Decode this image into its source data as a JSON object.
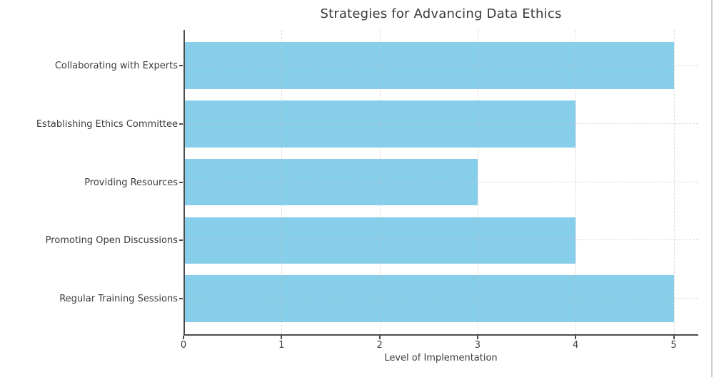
{
  "chart_data": {
    "type": "bar",
    "orientation": "horizontal",
    "title": "Strategies for Advancing Data Ethics",
    "xlabel": "Level of Implementation",
    "ylabel": "",
    "categories": [
      "Collaborating with Experts",
      "Establishing Ethics Committee",
      "Providing Resources",
      "Promoting Open Discussions",
      "Regular Training Sessions"
    ],
    "values": [
      5,
      4,
      3,
      4,
      5
    ],
    "xticks": [
      0,
      1,
      2,
      3,
      4,
      5
    ],
    "xlim": [
      0,
      5.25
    ],
    "grid": true,
    "grid_style": "dashed",
    "legend_position": "none",
    "bar_color": "#87CEEB",
    "category_order_note": "listed top to bottom as displayed"
  },
  "colors": {
    "bar": "#87CEEB",
    "grid": "#d9d9d9",
    "spine": "#4c4c4c",
    "text": "#3c3c3c",
    "background": "#ffffff"
  }
}
